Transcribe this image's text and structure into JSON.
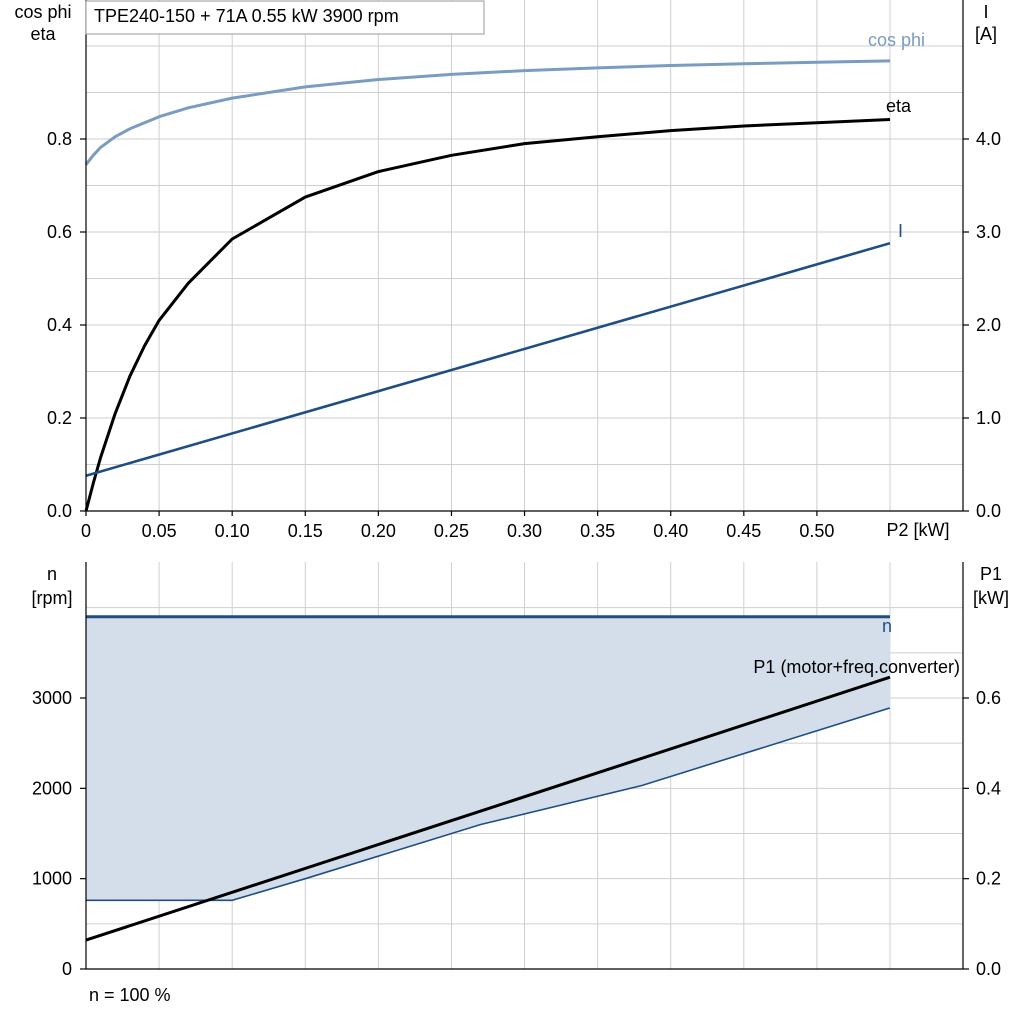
{
  "title": "TPE240-150 + 71A   0.55 kW   3900 rpm",
  "footnote": "n = 100 %",
  "colors": {
    "cosphi": "#7a9cc1",
    "eta": "#000000",
    "current": "#1f4e84",
    "speed": "#1f4e84",
    "p1": "#000000",
    "band": "#d4deea"
  },
  "chart_data": [
    {
      "type": "line",
      "title": "TPE240-150 + 71A   0.55 kW   3900 rpm",
      "xlabel": "P2 [kW]",
      "ylabel_left": [
        "cos phi",
        "eta"
      ],
      "ylabel_right": [
        "I",
        "[A]"
      ],
      "xlim": [
        0,
        0.59
      ],
      "ylim_left": [
        0,
        1.06
      ],
      "ylim_right": [
        0,
        5.3
      ],
      "xticks": [
        "0",
        "0.05",
        "0.10",
        "0.15",
        "0.20",
        "0.25",
        "0.30",
        "0.35",
        "0.40",
        "0.45",
        "0.50"
      ],
      "yticks_left": [
        "0.0",
        "0.2",
        "0.4",
        "0.6",
        "0.8"
      ],
      "yticks_right": [
        "0.0",
        "1.0",
        "2.0",
        "3.0",
        "4.0"
      ],
      "grid": true,
      "series": [
        {
          "name": "cos phi",
          "axis": "left",
          "x": [
            0,
            0.005,
            0.01,
            0.02,
            0.03,
            0.05,
            0.07,
            0.1,
            0.15,
            0.2,
            0.25,
            0.3,
            0.35,
            0.4,
            0.45,
            0.5,
            0.55
          ],
          "y": [
            0.745,
            0.765,
            0.782,
            0.805,
            0.822,
            0.848,
            0.867,
            0.888,
            0.912,
            0.928,
            0.939,
            0.947,
            0.953,
            0.958,
            0.962,
            0.965,
            0.968
          ]
        },
        {
          "name": "eta",
          "axis": "left",
          "x": [
            0,
            0.005,
            0.01,
            0.02,
            0.03,
            0.04,
            0.05,
            0.07,
            0.1,
            0.15,
            0.2,
            0.25,
            0.3,
            0.35,
            0.4,
            0.45,
            0.5,
            0.55
          ],
          "y": [
            0,
            0.06,
            0.115,
            0.21,
            0.29,
            0.355,
            0.41,
            0.49,
            0.585,
            0.675,
            0.73,
            0.765,
            0.79,
            0.805,
            0.818,
            0.828,
            0.835,
            0.842
          ]
        },
        {
          "name": "I",
          "axis": "right",
          "x": [
            0,
            0.55
          ],
          "y": [
            0.38,
            2.88
          ]
        }
      ]
    },
    {
      "type": "line",
      "xlabel": "",
      "ylabel_left": [
        "n",
        "[rpm]"
      ],
      "ylabel_right": [
        "P1",
        "[kW]"
      ],
      "xlim": [
        0,
        0.59
      ],
      "ylim_left": [
        0,
        4200
      ],
      "ylim_right": [
        0,
        0.84
      ],
      "yticks_left": [
        "0",
        "1000",
        "2000",
        "3000"
      ],
      "yticks_right": [
        "0.0",
        "0.2",
        "0.4",
        "0.6"
      ],
      "grid": true,
      "band": {
        "x": [
          0,
          0.1,
          0.15,
          0.27,
          0.38,
          0.55
        ],
        "lower": [
          760,
          760,
          1000,
          1600,
          2030,
          2890
        ],
        "upper": [
          3900,
          3900,
          3900,
          3900,
          3900,
          3900
        ]
      },
      "series": [
        {
          "name": "n",
          "axis": "left",
          "x": [
            0,
            0.55
          ],
          "y": [
            3900,
            3900
          ]
        },
        {
          "name": "P1 (motor+freq.converter)",
          "axis": "right",
          "x": [
            0,
            0.55
          ],
          "y": [
            0.064,
            0.646
          ]
        }
      ]
    }
  ]
}
